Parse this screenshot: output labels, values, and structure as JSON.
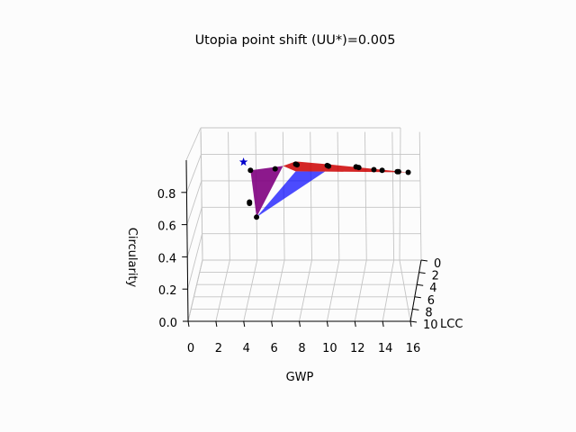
{
  "chart_data": {
    "type": "scatter",
    "projection": "3d",
    "title": "Utopia point shift (UU*)=0.005",
    "xlabel": "GWP",
    "ylabel": "LCC",
    "zlabel": "Circularity",
    "xlim": [
      0,
      16
    ],
    "ylim": [
      0,
      10
    ],
    "zlim": [
      0,
      1
    ],
    "x_ticks": [
      "0",
      "2",
      "4",
      "6",
      "8",
      "10",
      "12",
      "14",
      "16"
    ],
    "y_ticks": [
      "0",
      "2",
      "4",
      "6",
      "8",
      "10"
    ],
    "z_ticks": [
      "0.0",
      "0.2",
      "0.4",
      "0.6",
      "0.8"
    ],
    "grid": true,
    "series": [
      {
        "marker": "circle",
        "color": "#000000",
        "points": [
          {
            "x": 3.8,
            "y": 2,
            "z": 0.74
          },
          {
            "x": 3.7,
            "y": 2,
            "z": 0.51
          },
          {
            "x": 3.7,
            "y": 2,
            "z": 0.5
          },
          {
            "x": 4.2,
            "y": 2,
            "z": 0.4
          },
          {
            "x": 5.6,
            "y": 2,
            "z": 0.75
          },
          {
            "x": 7.1,
            "y": 2,
            "z": 0.785
          },
          {
            "x": 7.2,
            "y": 2,
            "z": 0.78
          },
          {
            "x": 9.4,
            "y": 2,
            "z": 0.775
          },
          {
            "x": 9.5,
            "y": 2,
            "z": 0.77
          },
          {
            "x": 11.5,
            "y": 2,
            "z": 0.765
          },
          {
            "x": 11.7,
            "y": 2,
            "z": 0.76
          },
          {
            "x": 12.8,
            "y": 2,
            "z": 0.745
          },
          {
            "x": 13.4,
            "y": 2,
            "z": 0.74
          },
          {
            "x": 14.5,
            "y": 2,
            "z": 0.73
          },
          {
            "x": 14.6,
            "y": 2,
            "z": 0.73
          },
          {
            "x": 15.3,
            "y": 2,
            "z": 0.725
          }
        ]
      },
      {
        "marker": "star",
        "color": "#0000cc",
        "points": [
          {
            "x": 3.3,
            "y": 2,
            "z": 0.8
          }
        ]
      }
    ],
    "surfaces": [
      {
        "color": "#0000ff",
        "opacity": 0.7
      },
      {
        "color": "#cc0000",
        "opacity": 0.85
      },
      {
        "color": "#800080",
        "opacity": 0.9
      }
    ]
  }
}
